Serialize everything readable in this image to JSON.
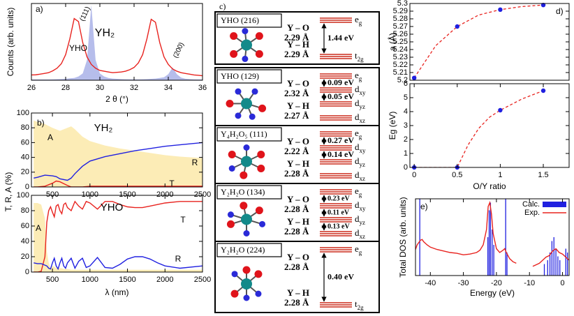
{
  "chart_data": [
    {
      "type": "line",
      "label": "a)",
      "xlabel": "2 θ (°)",
      "ylabel": "Counts (arb. units)",
      "xlim": [
        26,
        36
      ],
      "xticks": [
        26,
        28,
        30,
        32,
        34,
        36
      ],
      "ylim": [
        0,
        1.02
      ],
      "x": [
        26,
        26.25,
        26.5,
        26.75,
        27,
        27.25,
        27.5,
        27.75,
        28,
        28.25,
        28.5,
        28.75,
        29,
        29.25,
        29.5,
        29.75,
        30,
        30.25,
        30.5,
        30.75,
        31,
        31.25,
        31.5,
        31.75,
        32,
        32.25,
        32.5,
        32.75,
        33,
        33.25,
        33.5,
        33.75,
        34,
        34.25,
        34.5,
        34.75,
        35,
        35.25,
        35.5,
        35.75,
        36
      ],
      "series": [
        {
          "name": "YH₂",
          "color": "#a9b1e8",
          "fill": true,
          "values": [
            0.01,
            0.01,
            0.01,
            0.01,
            0.01,
            0.012,
            0.014,
            0.016,
            0.02,
            0.025,
            0.03,
            0.05,
            0.09,
            0.27,
            1.0,
            0.27,
            0.09,
            0.05,
            0.03,
            0.022,
            0.018,
            0.015,
            0.013,
            0.012,
            0.012,
            0.012,
            0.013,
            0.015,
            0.018,
            0.022,
            0.03,
            0.04,
            0.08,
            0.17,
            0.08,
            0.035,
            0.02,
            0.015,
            0.012,
            0.01,
            0.01
          ]
        },
        {
          "name": "YHO",
          "color": "#e8231f",
          "values": [
            0.07,
            0.072,
            0.08,
            0.09,
            0.1,
            0.125,
            0.16,
            0.22,
            0.34,
            0.555,
            0.82,
            0.78,
            0.5,
            0.31,
            0.21,
            0.16,
            0.13,
            0.12,
            0.11,
            0.1,
            0.105,
            0.11,
            0.12,
            0.14,
            0.17,
            0.23,
            0.34,
            0.55,
            0.81,
            0.77,
            0.5,
            0.31,
            0.21,
            0.15,
            0.12,
            0.1,
            0.09,
            0.08,
            0.07,
            0.065,
            0.06
          ]
        }
      ],
      "annotations": [
        "(111)",
        "(200)"
      ]
    },
    {
      "type": "line",
      "label": "b)",
      "title": "YH₂",
      "xlim": [
        220,
        2500
      ],
      "xticks": [
        500,
        1000,
        1500,
        2000,
        2500
      ],
      "ylim": [
        0,
        100
      ],
      "yticks": [
        0,
        20,
        40,
        60,
        80,
        100
      ],
      "x": [
        250,
        300,
        400,
        500,
        550,
        600,
        700,
        750,
        800,
        900,
        1000,
        1200,
        1400,
        1600,
        1800,
        2000,
        2200,
        2500
      ],
      "series": [
        {
          "name": "A",
          "color": "#fce9a9",
          "fill": true,
          "values": [
            90,
            88,
            85,
            80,
            78,
            76,
            80,
            82,
            78,
            68,
            62,
            56,
            52,
            49,
            46,
            43,
            41,
            39
          ]
        },
        {
          "name": "R",
          "color": "#2020e0",
          "values": [
            12,
            13,
            16,
            15,
            14,
            11,
            9,
            12,
            18,
            28,
            35,
            41,
            45,
            49,
            52,
            55,
            57,
            60
          ]
        },
        {
          "name": "T",
          "color": "#e8231f",
          "values": [
            0,
            0,
            1,
            5,
            8,
            7,
            2,
            0,
            0,
            0,
            1,
            1,
            1,
            1,
            1,
            1,
            1,
            1
          ]
        }
      ]
    },
    {
      "type": "line",
      "title": "YHO",
      "xlabel": "λ (nm)",
      "ylabel": "T, R, A (%)",
      "xlim": [
        220,
        2500
      ],
      "xticks": [
        500,
        1000,
        1500,
        2000,
        2500
      ],
      "ylim": [
        0,
        100
      ],
      "yticks": [
        0,
        20,
        40,
        60,
        80,
        100
      ],
      "x": [
        250,
        300,
        350,
        400,
        425,
        450,
        475,
        500,
        525,
        550,
        575,
        600,
        625,
        650,
        675,
        700,
        750,
        800,
        850,
        900,
        950,
        1000,
        1100,
        1200,
        1300,
        1400,
        1500,
        1600,
        1700,
        1800,
        1900,
        2000,
        2200,
        2500
      ],
      "series": [
        {
          "name": "A",
          "color": "#fce9a9",
          "fill": true,
          "values": [
            90,
            90,
            88,
            70,
            27,
            12,
            5,
            8,
            7,
            5,
            6,
            5,
            5,
            4,
            4,
            4,
            3,
            3,
            3,
            3,
            3,
            3,
            3,
            3,
            3,
            3,
            3,
            3,
            3,
            3,
            3,
            3,
            3,
            3
          ]
        },
        {
          "name": "T",
          "color": "#e8231f",
          "values": [
            0,
            0,
            1,
            20,
            65,
            80,
            85,
            78,
            72,
            86,
            88,
            80,
            76,
            88,
            90,
            84,
            80,
            92,
            86,
            82,
            92,
            90,
            82,
            92,
            92,
            88,
            85,
            84,
            84,
            86,
            88,
            90,
            92,
            92
          ]
        },
        {
          "name": "R",
          "color": "#2020e0",
          "values": [
            12,
            11,
            11,
            9,
            8,
            5,
            4,
            12,
            18,
            8,
            4,
            12,
            18,
            8,
            5,
            12,
            18,
            5,
            14,
            18,
            6,
            8,
            19,
            6,
            5,
            10,
            17,
            20,
            20,
            17,
            12,
            8,
            5,
            8
          ]
        }
      ]
    },
    {
      "type": "scatter",
      "label": "d)",
      "ylabel": "a (Å)",
      "xlim": [
        -0.05,
        1.8
      ],
      "ylim": [
        5.2,
        5.3
      ],
      "yticks": [
        5.2,
        5.21,
        5.22,
        5.23,
        5.24,
        5.25,
        5.26,
        5.27,
        5.28,
        5.29,
        5.3
      ],
      "x": [
        0,
        0.5,
        1,
        1.5
      ],
      "values": [
        5.203,
        5.27,
        5.292,
        5.298
      ],
      "color": "#2020e0",
      "fit": {
        "color": "#e8231f",
        "x": [
          0,
          0.25,
          0.5,
          0.75,
          1,
          1.25,
          1.5
        ],
        "values": [
          5.203,
          5.245,
          5.27,
          5.285,
          5.292,
          5.296,
          5.298
        ]
      }
    },
    {
      "type": "scatter",
      "xlabel": "O/Y ratio",
      "ylabel": "Eg (eV)",
      "xlim": [
        -0.05,
        1.8
      ],
      "xticks": [
        0,
        0.5,
        1,
        1.5
      ],
      "ylim": [
        0,
        6
      ],
      "yticks": [
        0,
        1,
        2,
        3,
        4,
        5,
        6
      ],
      "x": [
        0,
        0.5,
        1,
        1.5
      ],
      "values": [
        0,
        0,
        4.1,
        5.5
      ],
      "color": "#2020e0",
      "fit": {
        "color": "#e8231f",
        "x": [
          0,
          0.5,
          0.625,
          0.75,
          0.875,
          1,
          1.25,
          1.5
        ],
        "values": [
          0,
          0,
          1.6,
          2.8,
          3.6,
          4.1,
          4.9,
          5.5
        ]
      }
    },
    {
      "type": "line",
      "label": "e)",
      "xlabel": "Energy (eV)",
      "ylabel": "Total DOS (arb. units)",
      "xlim": [
        -44.5,
        2
      ],
      "xticks": [
        -40,
        -30,
        -20,
        -10,
        0
      ],
      "ylim": [
        0,
        1
      ],
      "legend": "upper right",
      "series": [
        {
          "name": "Calc.",
          "color": "#2020e0",
          "style": "spikes",
          "x": [
            -43.2,
            -22.6,
            -22.2,
            -21.8,
            -21.3,
            -20.8,
            -17.2,
            -16.8,
            -5.5,
            -4.5,
            -3.8,
            -3.2,
            -2.6,
            -2.0,
            -1.4,
            -0.8,
            1.0,
            1.5
          ],
          "values": [
            1.0,
            0.5,
            0.85,
            0.95,
            0.6,
            0.4,
            1.0,
            0.3,
            0.15,
            0.2,
            0.3,
            0.45,
            0.5,
            0.35,
            0.25,
            0.2,
            0.35,
            0.3
          ]
        },
        {
          "name": "Exp.",
          "color": "#e8231f",
          "x": [
            -44.5,
            -44,
            -43,
            -42.5,
            -42,
            -41,
            -40,
            -38,
            -36,
            -34,
            -32,
            -30,
            -28,
            -26,
            -25,
            -24,
            -23,
            -22.5,
            -22,
            -21.5,
            -21,
            -20,
            -19,
            -18,
            -17.5,
            -17,
            -16,
            -15,
            -14,
            -12,
            -9,
            -8,
            -7,
            -6,
            -5,
            -4,
            -3,
            -2,
            -1,
            0,
            1,
            2
          ],
          "values": [
            0.34,
            0.4,
            0.46,
            0.47,
            0.44,
            0.4,
            0.37,
            0.34,
            0.32,
            0.3,
            0.29,
            0.27,
            0.28,
            0.3,
            0.33,
            0.4,
            0.6,
            0.9,
            0.95,
            0.8,
            0.55,
            0.35,
            0.3,
            0.33,
            0.35,
            0.3,
            0.22,
            0.18,
            0.16,
            null,
            0.12,
            0.14,
            0.16,
            0.2,
            0.24,
            0.26,
            0.32,
            0.35,
            0.3,
            0.28,
            0.24,
            0.2
          ]
        }
      ]
    }
  ],
  "diagram": {
    "label": "c)",
    "boxes": [
      {
        "title": "YHO (216)",
        "bonds": [
          {
            "bond": "Y – O",
            "length": "2.29 Å"
          },
          {
            "bond": "Y – H",
            "length": "2.29 Å"
          }
        ],
        "levels": [
          {
            "base": "e",
            "sub": "g"
          },
          {
            "base": "t",
            "sub": "2g"
          }
        ],
        "gaps": [
          "1.44 eV"
        ]
      },
      {
        "title": "YHO (129)",
        "bonds": [
          {
            "bond": "Y – O",
            "length": "2.32 Å"
          },
          {
            "bond": "Y – H",
            "length": "2.27 Å"
          }
        ],
        "levels": [
          {
            "base": "e",
            "sub": "g"
          },
          {
            "base": "d",
            "sub": "xy"
          },
          {
            "base": "d",
            "sub": "yz"
          },
          {
            "base": "d",
            "sub": "xz"
          }
        ],
        "gaps": [
          "0.09 eV",
          "0.05 eV"
        ]
      },
      {
        "title": "Y₄H₂O₅ (111)",
        "bonds": [
          {
            "bond": "Y – O",
            "length": "2.22 Å"
          },
          {
            "bond": "Y – H",
            "length": "2.28 Å"
          }
        ],
        "levels": [
          {
            "base": "e",
            "sub": "g"
          },
          {
            "base": "d",
            "sub": "xy"
          },
          {
            "base": "d",
            "sub": "yz"
          },
          {
            "base": "d",
            "sub": "xz"
          }
        ],
        "gaps": [
          "0.27 eV",
          "0.14 eV"
        ]
      },
      {
        "title": "Y₂H₂O (134)",
        "bonds": [
          {
            "bond": "Y – O",
            "length": "2.28 Å"
          },
          {
            "bond": "Y – H",
            "length": "2.28 Å"
          }
        ],
        "levels": [
          {
            "base": "e",
            "sub": "g"
          },
          {
            "base": "d",
            "sub": "xy"
          },
          {
            "base": "d",
            "sub": "yz"
          },
          {
            "base": "d",
            "sub": "xz"
          }
        ],
        "gaps": [
          "0.23 eV",
          "0.11 eV",
          "0.13 eV"
        ]
      },
      {
        "title": "Y₂H₂O (224)",
        "bonds": [
          {
            "bond": "Y – O",
            "length": "2.28 Å"
          },
          {
            "bond": "Y – H",
            "length": "2.28 Å"
          }
        ],
        "levels": [
          {
            "base": "e",
            "sub": "g"
          },
          {
            "base": "t",
            "sub": "2g"
          }
        ],
        "gaps": [
          "0.40 eV"
        ]
      }
    ]
  }
}
